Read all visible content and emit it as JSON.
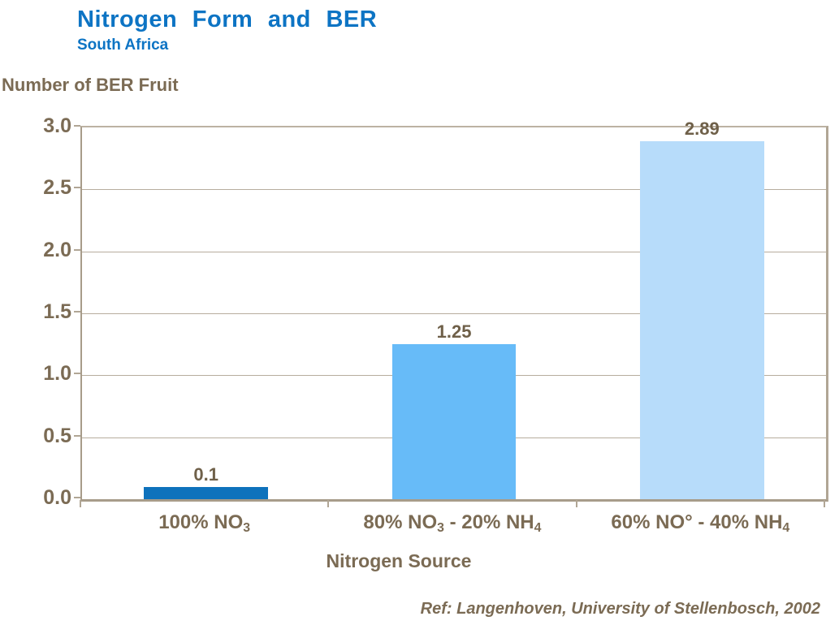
{
  "header": {
    "title": "Nitrogen Form and BER",
    "subtitle": "South Africa"
  },
  "footnote": "Ref: Langenhoven, University of Stellenbosch, 2002",
  "colors": {
    "title_blue": "#0d74c4",
    "text_brown": "#7b6b54",
    "data_label_brown": "#6f6049",
    "axis_line": "#b1a695",
    "gridline": "#b7ad9e"
  },
  "chart_data": {
    "type": "bar",
    "title": "Nitrogen Form and BER",
    "subtitle": "South Africa",
    "ylabel": "Number of BER Fruit",
    "xlabel": "Nitrogen Source",
    "categories": [
      "100% NO_3",
      "80% NO_3 - 20% NH_4",
      "60% NO° - 40% NH_4"
    ],
    "values": [
      0.1,
      1.25,
      2.89
    ],
    "value_labels": [
      "0.1",
      "1.25",
      "2.89"
    ],
    "ylim": [
      0.0,
      3.0
    ],
    "ytick_step": 0.5,
    "ytick_labels": [
      "0.0",
      "0.5",
      "1.0",
      "1.5",
      "2.0",
      "2.5",
      "3.0"
    ],
    "grid": true,
    "legend_position": "none",
    "bar_colors": [
      "#0e72bc",
      "#67bbf8",
      "#b7dcfa"
    ]
  }
}
